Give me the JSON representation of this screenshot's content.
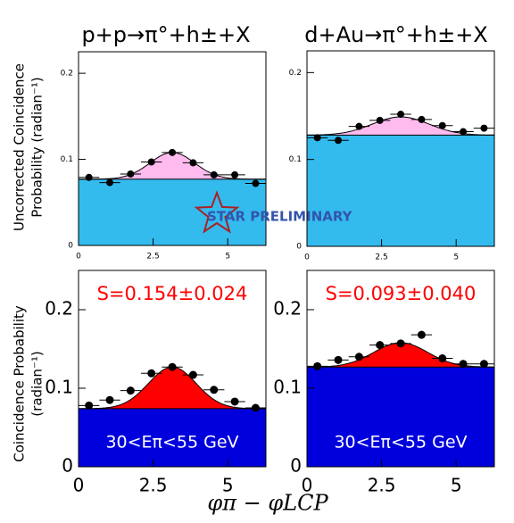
{
  "figure": {
    "titles": [
      "p+p→π°+h±+X",
      "d+Au→π°+h±+X"
    ],
    "y_labels": [
      [
        "Uncorrected Coincidence",
        "Probability  (radian⁻¹)"
      ],
      [
        "Coincidence Probability",
        "(radian⁻¹)"
      ]
    ],
    "x_label": "φπ − φLCP",
    "watermark": "STAR PRELIMINARY"
  },
  "chart_data": [
    {
      "type": "scatter",
      "x": [
        0.349,
        1.047,
        1.745,
        2.443,
        3.142,
        3.84,
        4.538,
        5.236,
        5.934
      ],
      "values": [
        0.079,
        0.073,
        0.083,
        0.097,
        0.108,
        0.096,
        0.082,
        0.082,
        0.072
      ],
      "xerr": 0.349,
      "yerr": 0.003,
      "xlim": [
        0,
        6.28
      ],
      "ylim": [
        0,
        0.225
      ],
      "xticks": [
        0,
        2.5,
        5
      ],
      "yticks": [
        0,
        0.1,
        0.2
      ],
      "pedestal": 0.077,
      "fit_amplitude": 0.031,
      "fit_center": 3.142,
      "fit_sigma": 0.75,
      "pedestal_color": "#33bbee",
      "signal_color": "#ffbbee"
    },
    {
      "type": "scatter",
      "x": [
        0.349,
        1.047,
        1.745,
        2.443,
        3.142,
        3.84,
        4.538,
        5.236,
        5.934
      ],
      "values": [
        0.125,
        0.122,
        0.138,
        0.145,
        0.152,
        0.146,
        0.139,
        0.132,
        0.136
      ],
      "xerr": 0.349,
      "yerr": 0.003,
      "xlim": [
        0,
        6.28
      ],
      "ylim": [
        0,
        0.225
      ],
      "xticks": [
        0,
        2.5,
        5
      ],
      "yticks": [
        0,
        0.1,
        0.2
      ],
      "pedestal": 0.128,
      "fit_amplitude": 0.021,
      "fit_center": 3.142,
      "fit_sigma": 0.95,
      "pedestal_color": "#33bbee",
      "signal_color": "#ffbbee"
    },
    {
      "type": "scatter",
      "x": [
        0.349,
        1.047,
        1.745,
        2.443,
        3.142,
        3.84,
        4.538,
        5.236,
        5.934
      ],
      "values": [
        0.078,
        0.085,
        0.097,
        0.119,
        0.127,
        0.117,
        0.098,
        0.083,
        0.075
      ],
      "xerr": 0.349,
      "yerr": 0.004,
      "xlim": [
        0,
        6.28
      ],
      "ylim": [
        0,
        0.25
      ],
      "xticks": [
        0,
        2.5,
        5
      ],
      "yticks": [
        0,
        0.1,
        0.2
      ],
      "pedestal": 0.074,
      "fit_amplitude": 0.053,
      "fit_center": 3.142,
      "fit_sigma": 0.8,
      "pedestal_color": "#0000dd",
      "signal_color": "#ff0000",
      "annotations": [
        "S=0.154±0.024",
        "30<Eπ<55 GeV"
      ]
    },
    {
      "type": "scatter",
      "x": [
        0.349,
        1.047,
        1.745,
        2.443,
        3.142,
        3.84,
        4.538,
        5.236,
        5.934
      ],
      "values": [
        0.128,
        0.136,
        0.14,
        0.155,
        0.157,
        0.168,
        0.138,
        0.131,
        0.131
      ],
      "xerr": 0.349,
      "yerr": 0.005,
      "xlim": [
        0,
        6.28
      ],
      "ylim": [
        0,
        0.25
      ],
      "xticks": [
        0,
        2.5,
        5
      ],
      "yticks": [
        0,
        0.1,
        0.2
      ],
      "pedestal": 0.127,
      "fit_amplitude": 0.031,
      "fit_center": 3.142,
      "fit_sigma": 0.9,
      "pedestal_color": "#0000dd",
      "signal_color": "#ff0000",
      "annotations": [
        "S=0.093±0.040",
        "30<Eπ<55 GeV"
      ]
    }
  ]
}
